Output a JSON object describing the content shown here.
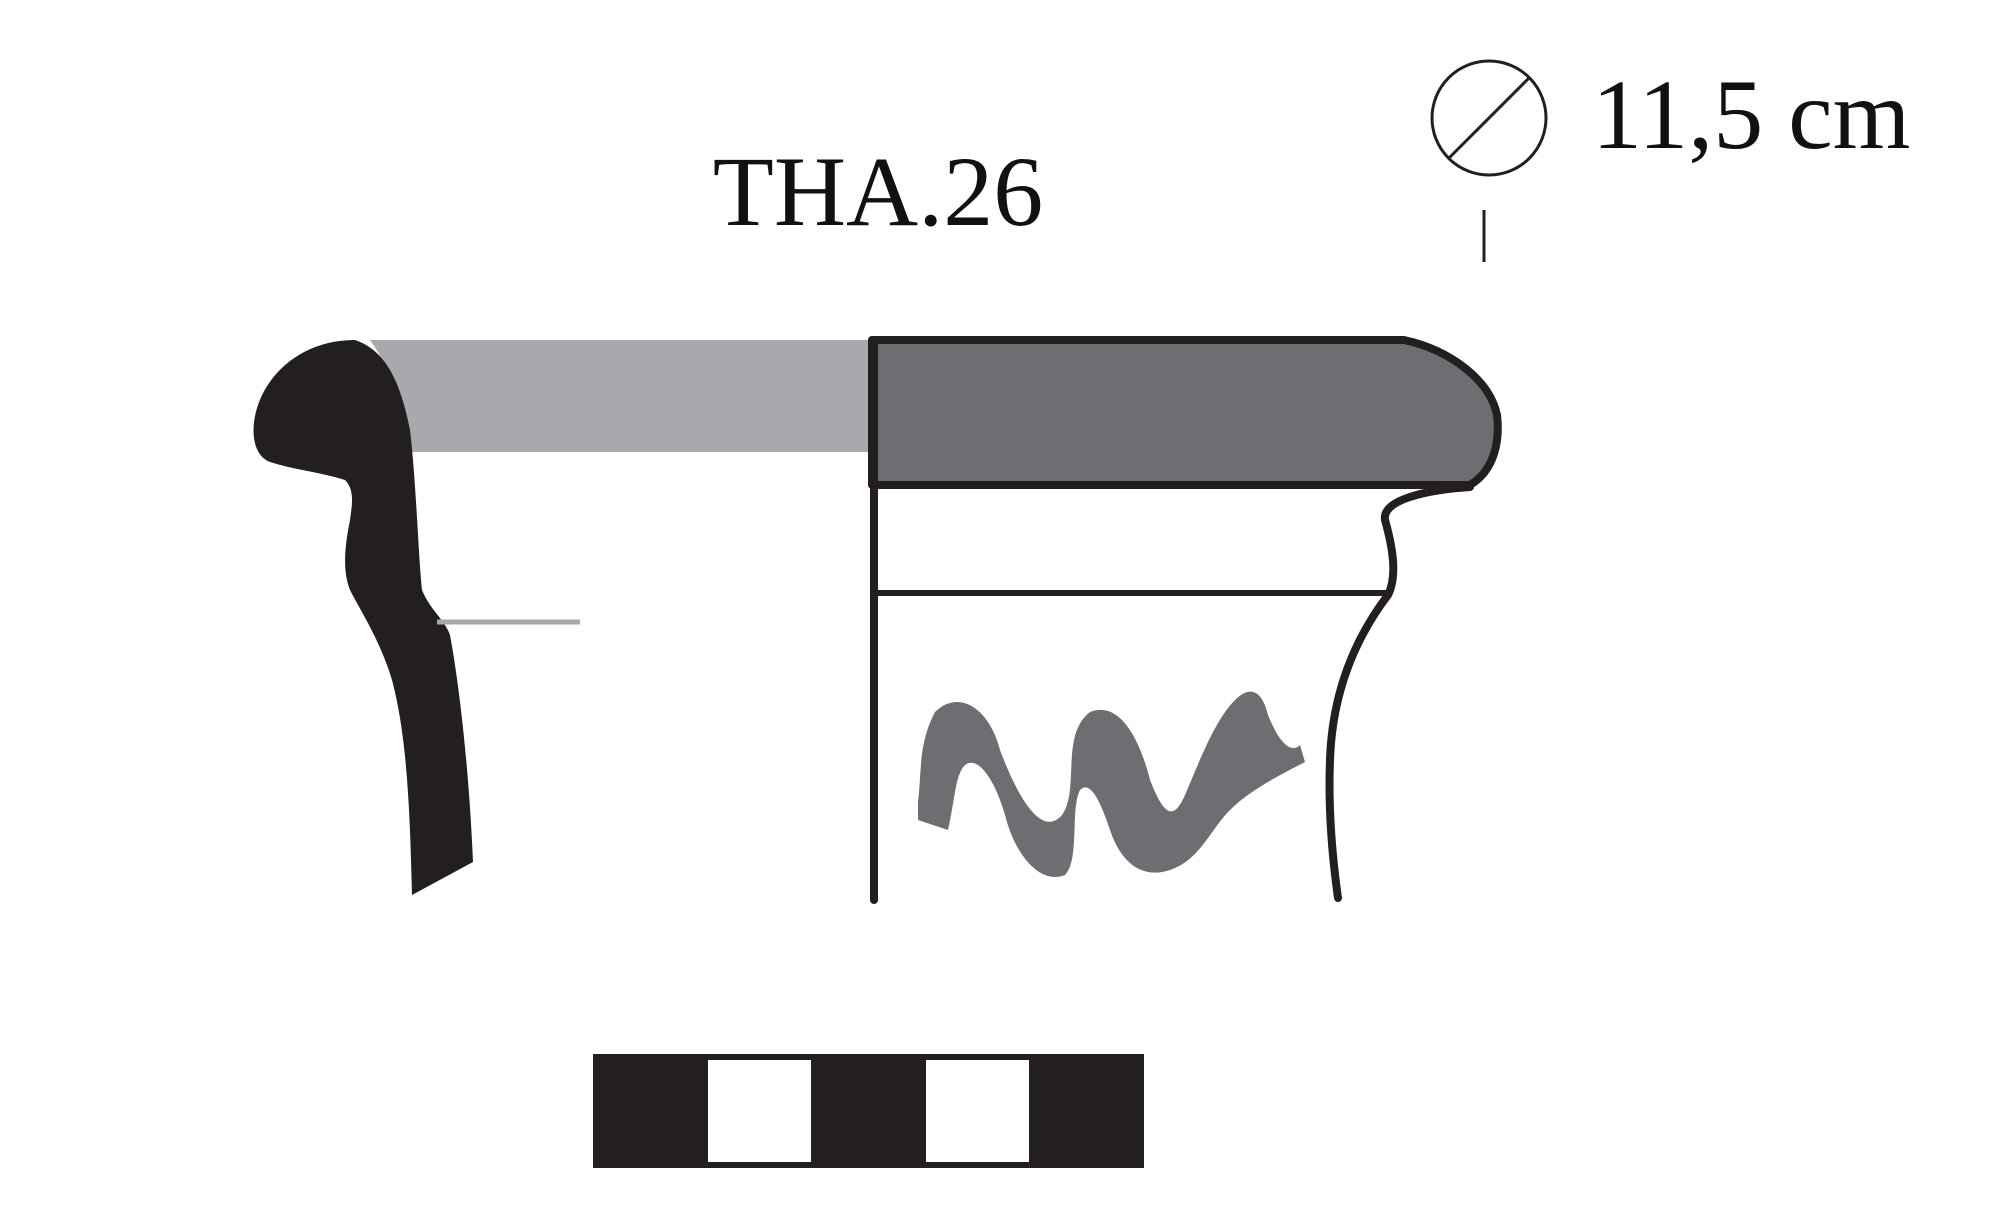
{
  "catalogue_number": "THA.26",
  "diameter": {
    "icon": "diameter-symbol-icon",
    "value": "11,5 cm"
  },
  "colors": {
    "section_fill": "#231f20",
    "rim_band_light": "#a7a9ac",
    "rim_band_dark": "#6d6e71",
    "outline": "#231f20",
    "painted_decoration": "#6d6e71",
    "background": "#ffffff"
  },
  "scale_bar": {
    "segments": [
      "black",
      "white",
      "black",
      "white",
      "black"
    ]
  }
}
